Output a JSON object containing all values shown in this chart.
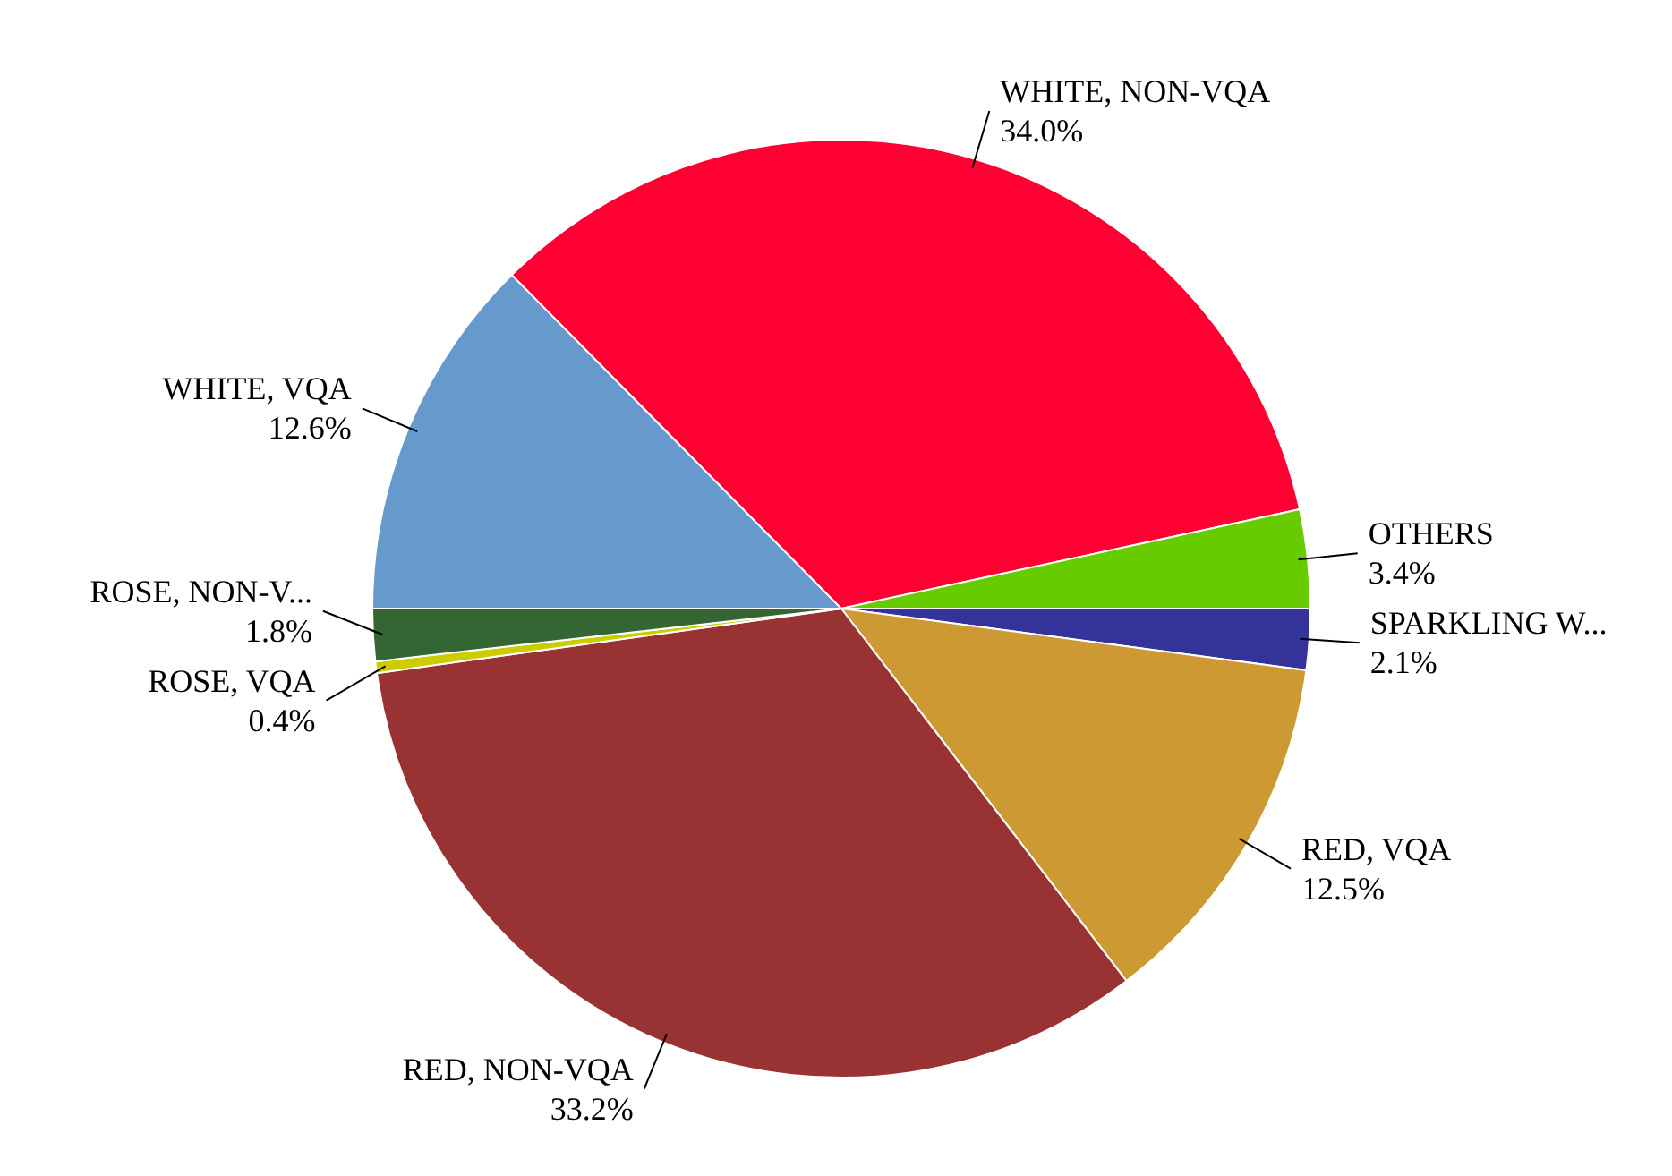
{
  "chart_data": {
    "type": "pie",
    "categories": [
      "SPARKLING W...",
      "RED, VQA",
      "RED, NON-VQA",
      "ROSE, VQA",
      "ROSE, NON-V...",
      "WHITE, VQA",
      "WHITE, NON-VQA",
      "OTHERS"
    ],
    "values": [
      2.1,
      12.5,
      33.2,
      0.4,
      1.8,
      12.6,
      34.0,
      3.4
    ],
    "colors": [
      "#333399",
      "#cc9933",
      "#993333",
      "#cccc00",
      "#336633",
      "#6699cc",
      "#ff0033",
      "#66cc00"
    ],
    "value_labels": [
      "2.1%",
      "12.5%",
      "33.2%",
      "0.4%",
      "1.8%",
      "12.6%",
      "34.0%",
      "3.4%"
    ]
  }
}
